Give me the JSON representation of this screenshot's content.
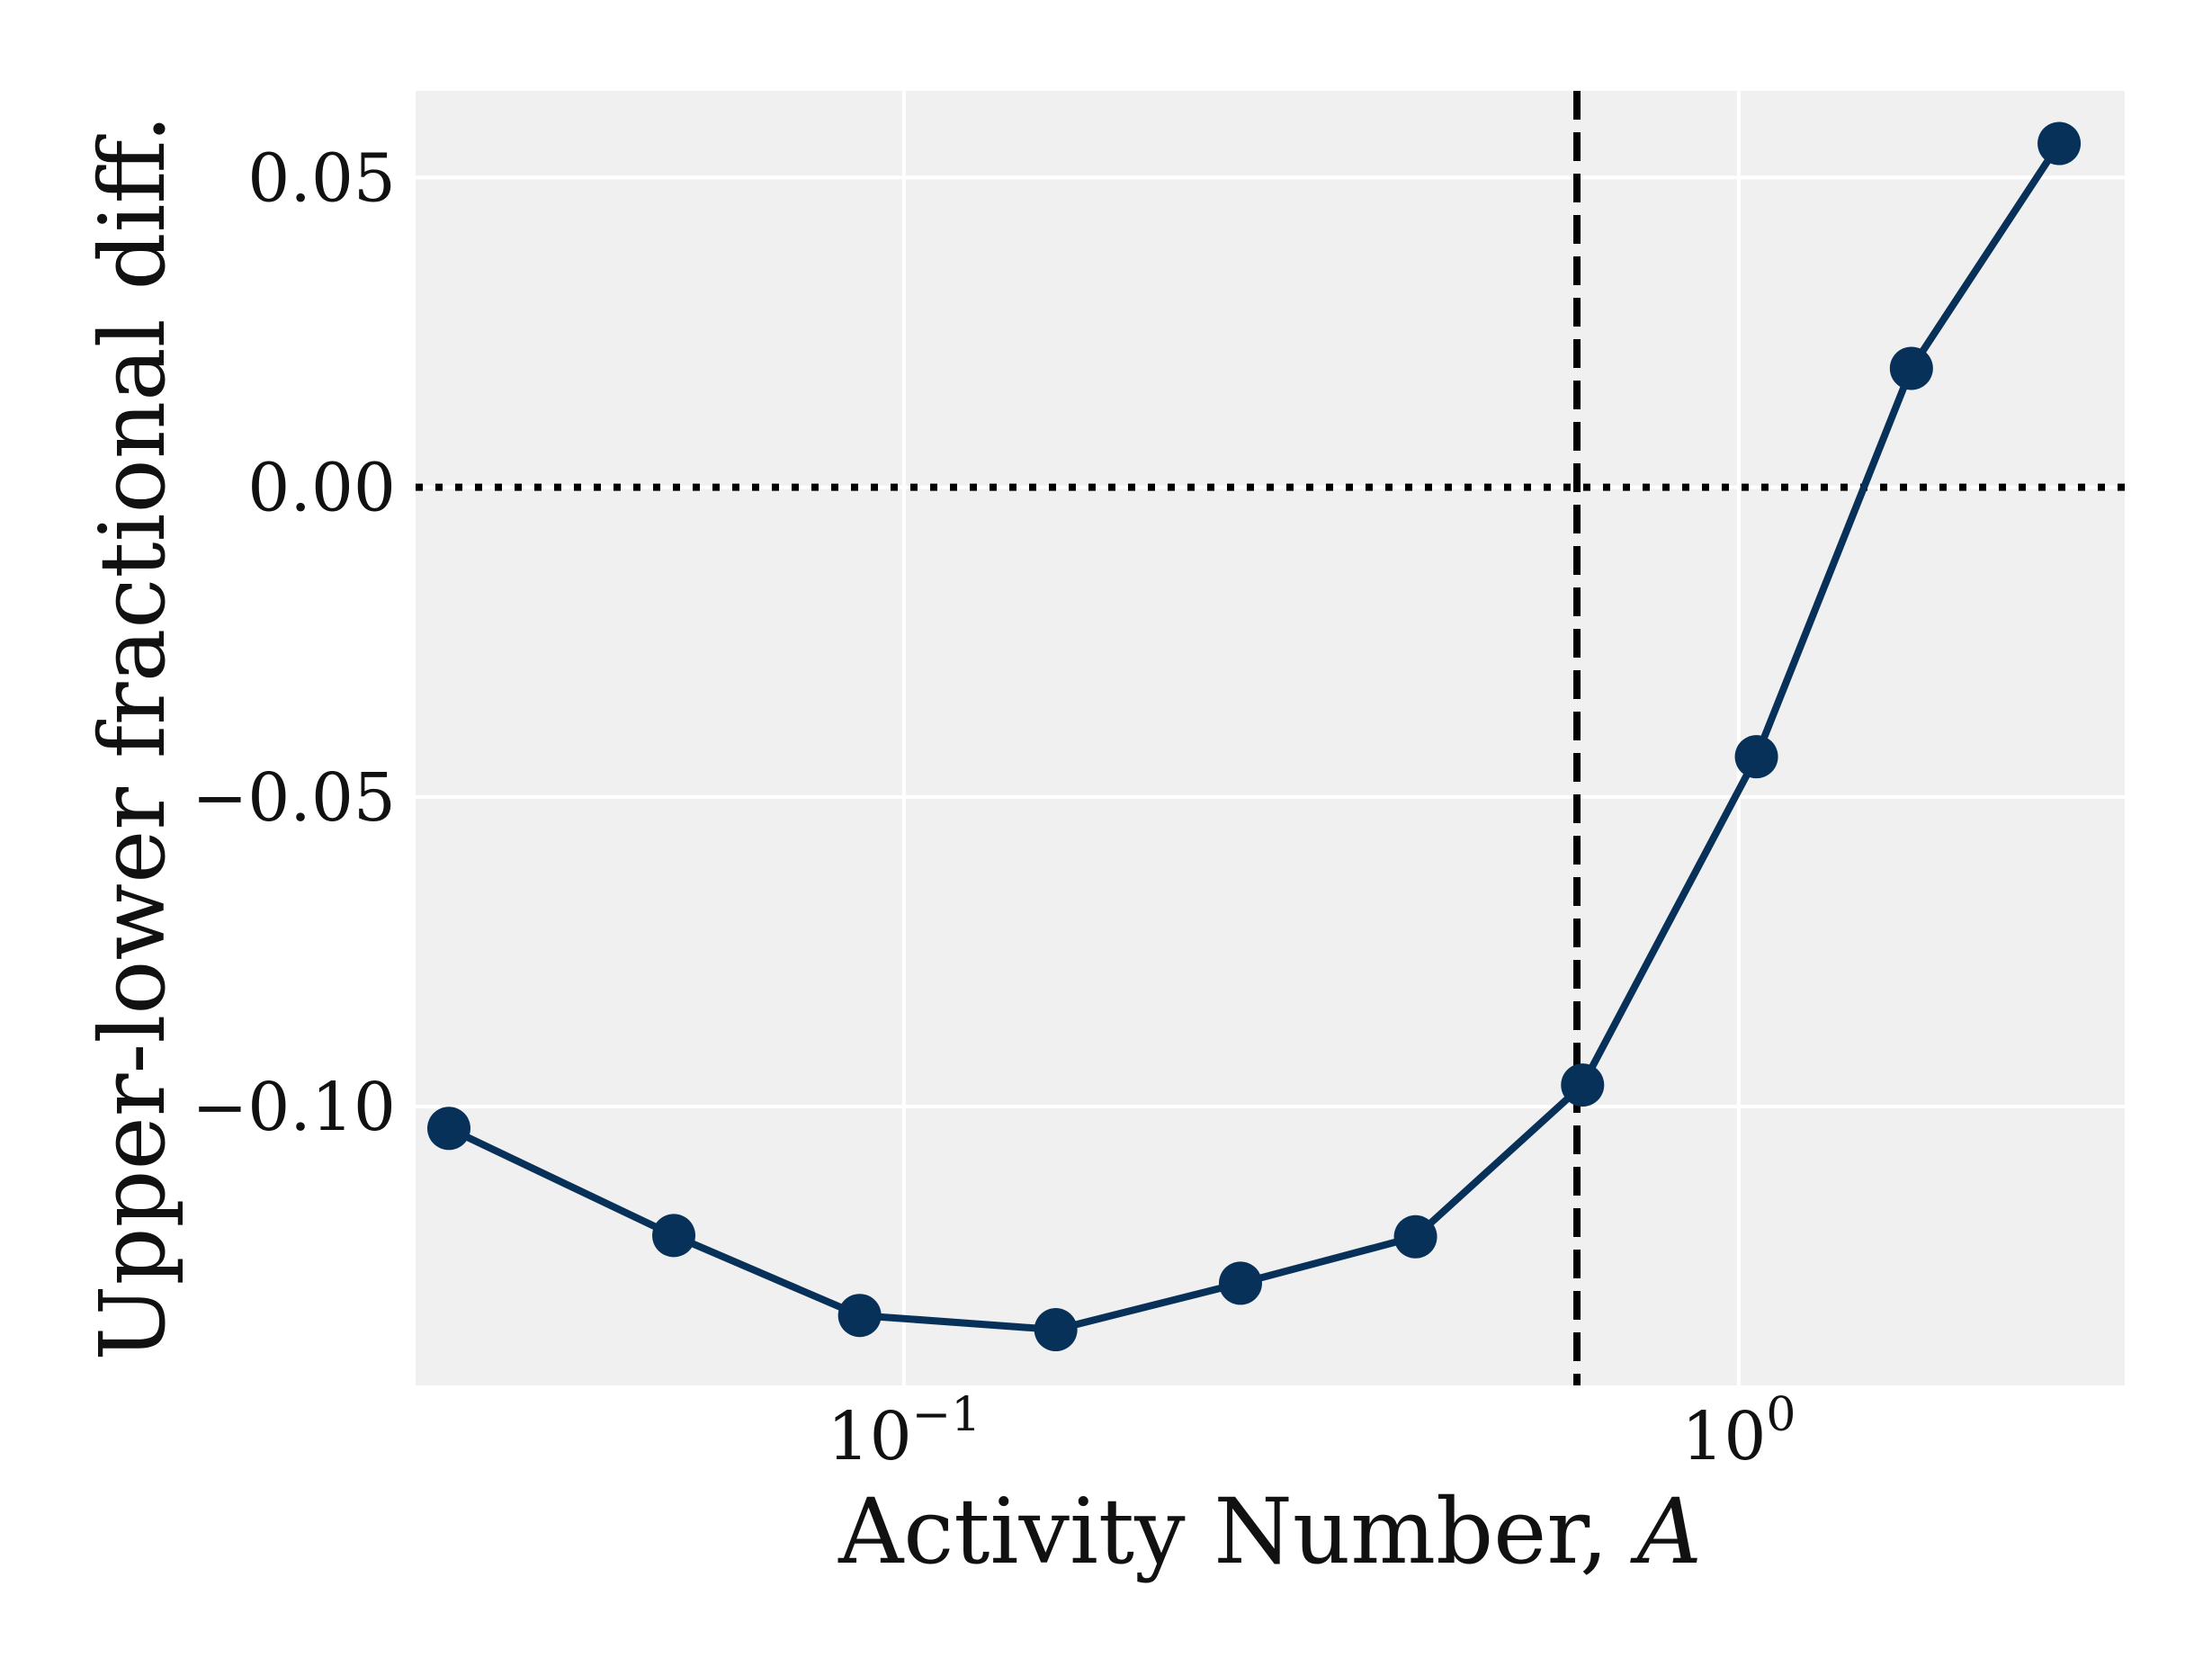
{
  "chart_data": {
    "type": "line",
    "xlabel": "Activity Number, ",
    "xlabel_var": "A",
    "ylabel": "Upper-lower fractional diff.",
    "x_scale": "log",
    "xlim": [
      0.026,
      2.9
    ],
    "ylim": [
      -0.145,
      0.064
    ],
    "x_ticks": [
      {
        "value": 0.1,
        "base": "10",
        "exp": "−1"
      },
      {
        "value": 1.0,
        "base": "10",
        "exp": "0"
      }
    ],
    "y_ticks": [
      {
        "value": 0.05,
        "label": "0.05"
      },
      {
        "value": 0.0,
        "label": "0.00"
      },
      {
        "value": -0.05,
        "label": "−0.05"
      },
      {
        "value": -0.1,
        "label": "−0.10"
      }
    ],
    "grid": true,
    "series": [
      {
        "color": "#08315a",
        "marker": "circle",
        "points": [
          {
            "x": 0.0285,
            "y": -0.1035
          },
          {
            "x": 0.053,
            "y": -0.1208
          },
          {
            "x": 0.0885,
            "y": -0.1337
          },
          {
            "x": 0.152,
            "y": -0.136
          },
          {
            "x": 0.253,
            "y": -0.1285
          },
          {
            "x": 0.41,
            "y": -0.121
          },
          {
            "x": 0.65,
            "y": -0.0965
          },
          {
            "x": 1.05,
            "y": -0.0435
          },
          {
            "x": 1.61,
            "y": 0.0192
          },
          {
            "x": 2.42,
            "y": 0.0555
          }
        ]
      }
    ],
    "reference_lines": [
      {
        "orientation": "horizontal",
        "value": 0.0,
        "style": "dotted",
        "color": "#000000"
      },
      {
        "orientation": "vertical",
        "value": 0.64,
        "style": "dashed",
        "color": "#000000"
      }
    ],
    "colors": {
      "plot_background": "#f0f0f0",
      "grid": "#ffffff",
      "line": "#08315a"
    }
  }
}
